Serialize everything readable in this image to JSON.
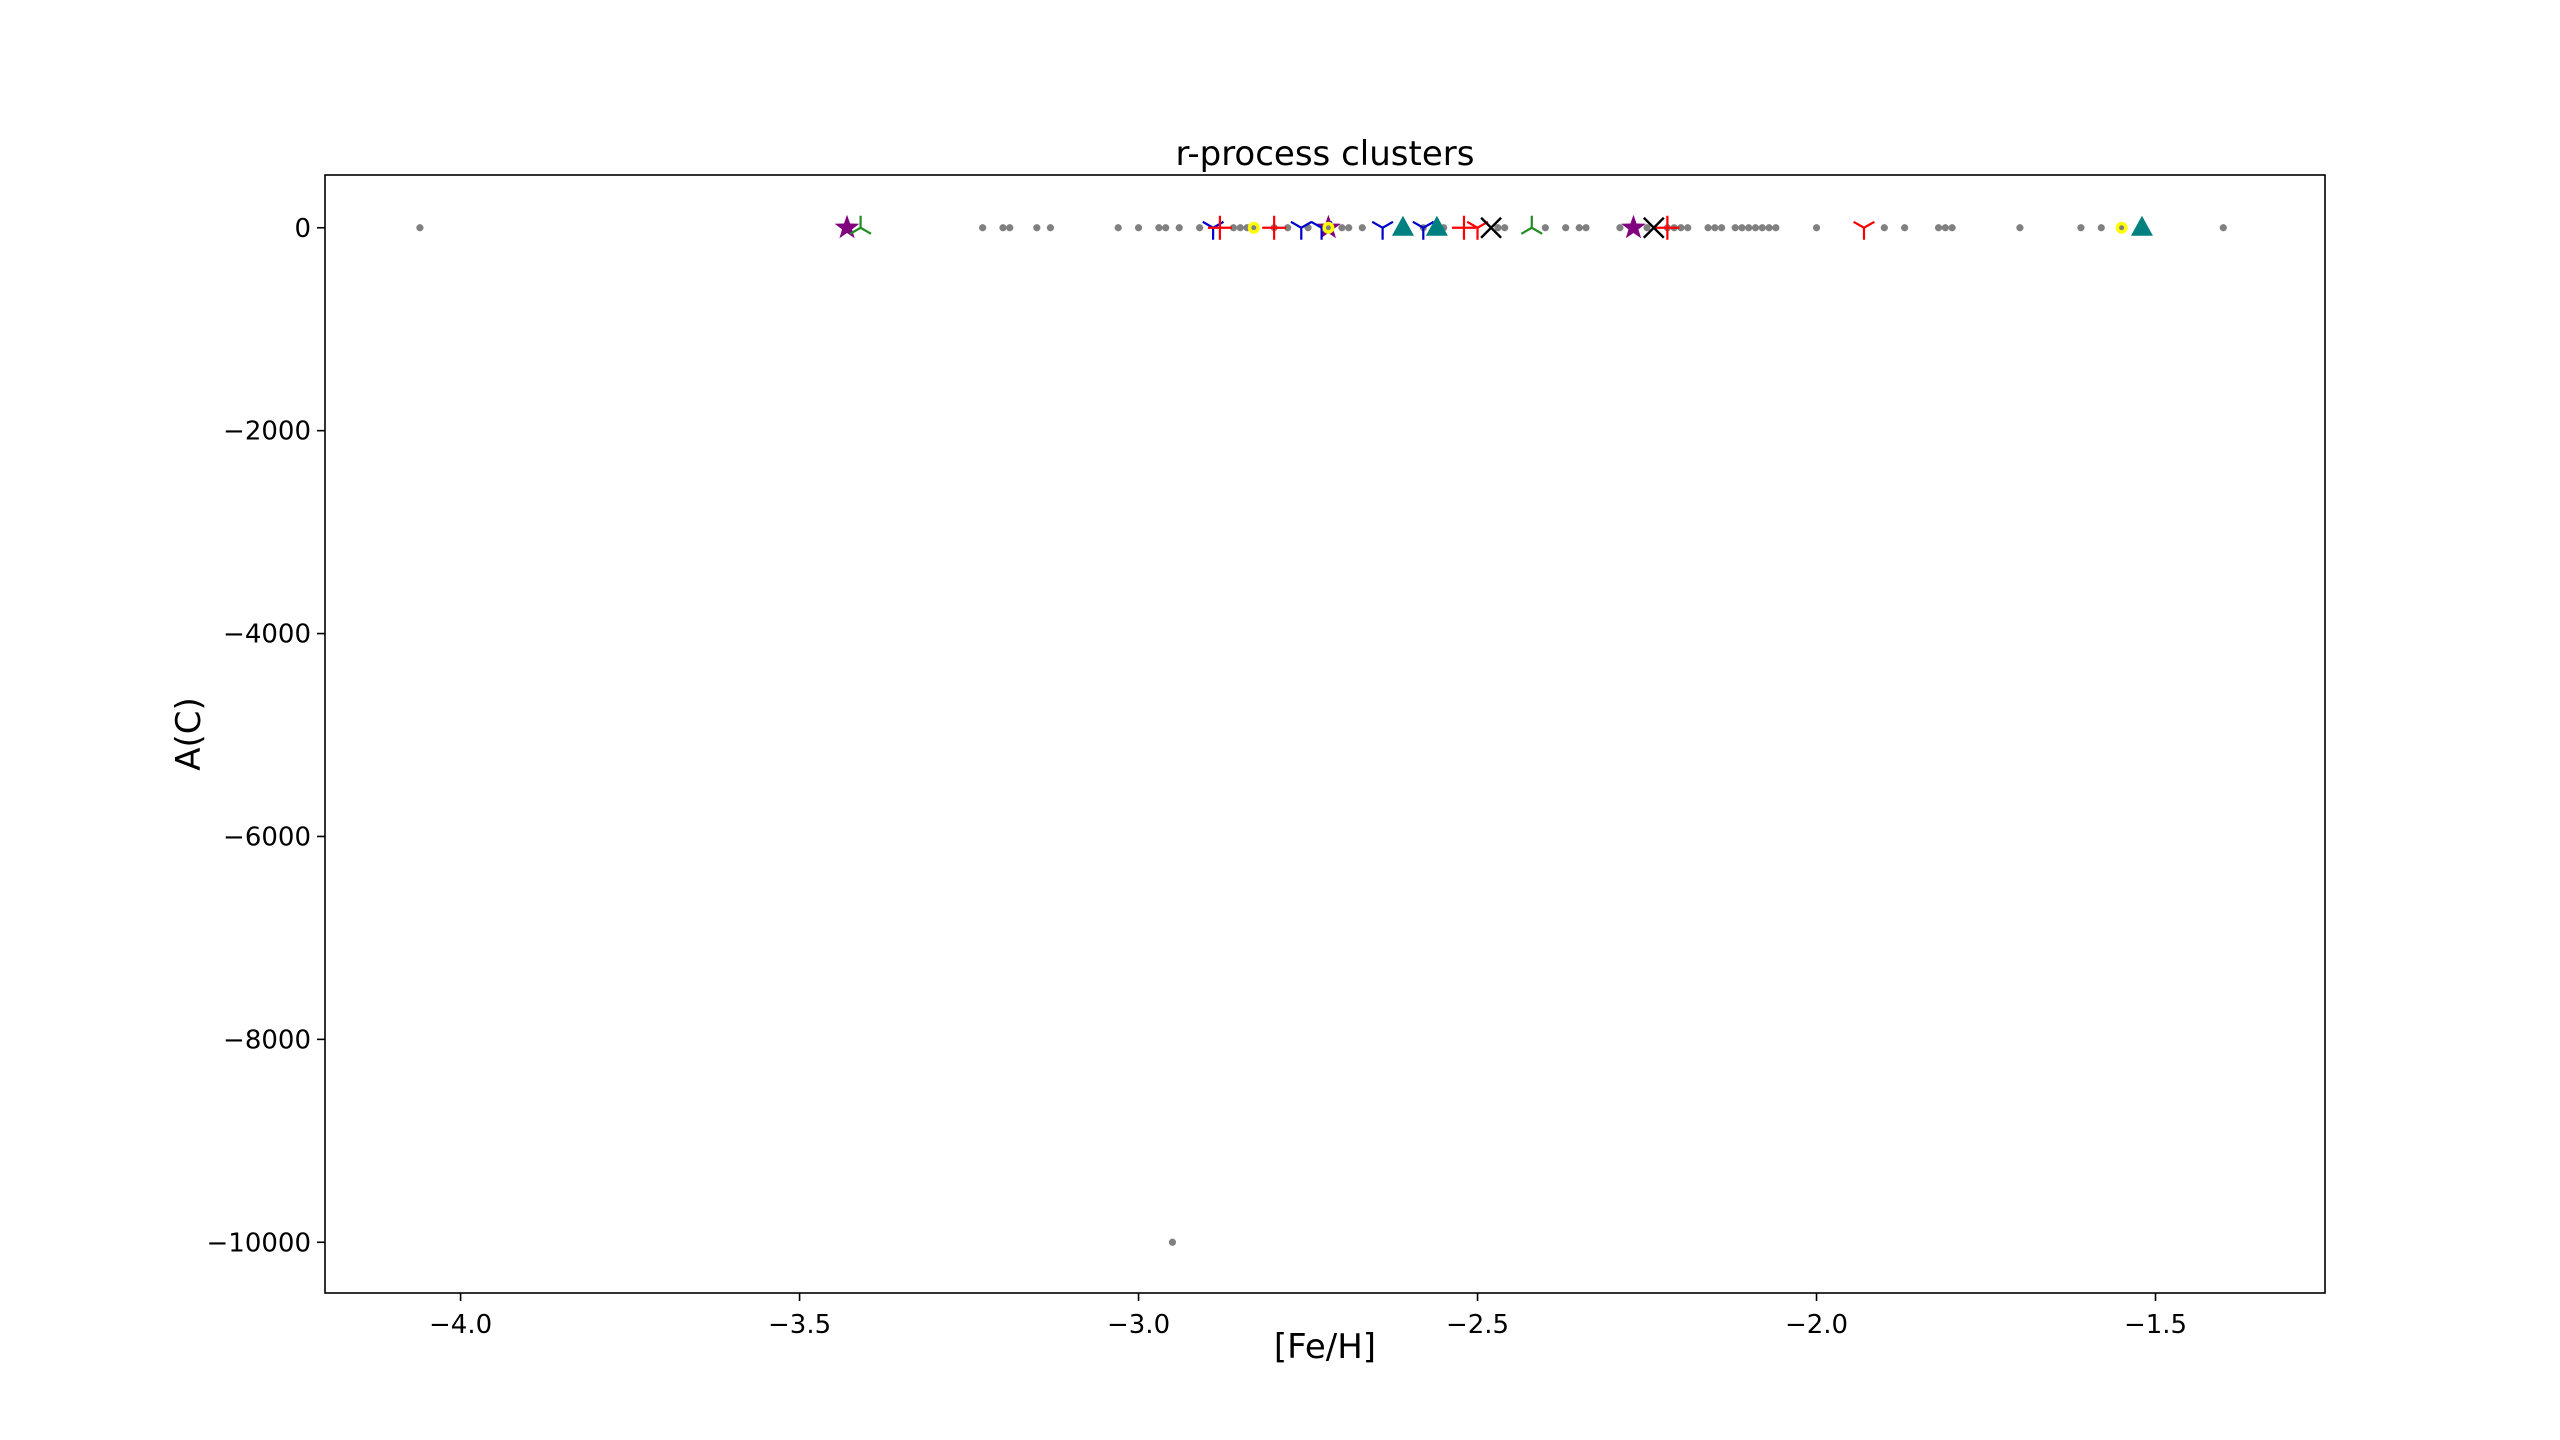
{
  "chart_data": {
    "type": "scatter",
    "title": "r-process clusters",
    "xlabel": "[Fe/H]",
    "ylabel": "A(C)",
    "xlim": [
      -4.2,
      -1.25
    ],
    "ylim": [
      -10500,
      520
    ],
    "x_ticks": [
      -4.0,
      -3.5,
      -3.0,
      -2.5,
      -2.0,
      -1.5
    ],
    "x_tick_labels": [
      "−4.0",
      "−3.5",
      "−3.0",
      "−2.5",
      "−2.0",
      "−1.5"
    ],
    "y_ticks": [
      0,
      -2000,
      -4000,
      -6000,
      -8000,
      -10000
    ],
    "y_tick_labels": [
      "0",
      "−2000",
      "−4000",
      "−6000",
      "−8000",
      "−10000"
    ],
    "grid": false,
    "legend": "none",
    "background_points": {
      "color": "#808080",
      "marker": "dot",
      "points": [
        [
          -4.06,
          0
        ],
        [
          -3.23,
          0
        ],
        [
          -3.2,
          0
        ],
        [
          -3.19,
          0
        ],
        [
          -3.15,
          0
        ],
        [
          -3.13,
          0
        ],
        [
          -3.03,
          0
        ],
        [
          -3.0,
          0
        ],
        [
          -2.97,
          0
        ],
        [
          -2.96,
          0
        ],
        [
          -2.94,
          0
        ],
        [
          -2.91,
          0
        ],
        [
          -2.86,
          0
        ],
        [
          -2.85,
          0
        ],
        [
          -2.84,
          0
        ],
        [
          -2.8,
          0
        ],
        [
          -2.78,
          0
        ],
        [
          -2.75,
          0
        ],
        [
          -2.7,
          0
        ],
        [
          -2.69,
          0
        ],
        [
          -2.67,
          0
        ],
        [
          -2.58,
          0
        ],
        [
          -2.55,
          0
        ],
        [
          -2.47,
          0
        ],
        [
          -2.46,
          0
        ],
        [
          -2.4,
          0
        ],
        [
          -2.37,
          0
        ],
        [
          -2.35,
          0
        ],
        [
          -2.34,
          0
        ],
        [
          -2.29,
          0
        ],
        [
          -2.25,
          0
        ],
        [
          -2.22,
          0
        ],
        [
          -2.21,
          0
        ],
        [
          -2.2,
          0
        ],
        [
          -2.19,
          0
        ],
        [
          -2.16,
          0
        ],
        [
          -2.15,
          0
        ],
        [
          -2.14,
          0
        ],
        [
          -2.12,
          0
        ],
        [
          -2.11,
          0
        ],
        [
          -2.1,
          0
        ],
        [
          -2.09,
          0
        ],
        [
          -2.08,
          0
        ],
        [
          -2.07,
          0
        ],
        [
          -2.06,
          0
        ],
        [
          -2.0,
          0
        ],
        [
          -1.9,
          0
        ],
        [
          -1.87,
          0
        ],
        [
          -1.82,
          0
        ],
        [
          -1.81,
          0
        ],
        [
          -1.8,
          0
        ],
        [
          -1.7,
          0
        ],
        [
          -1.61,
          0
        ],
        [
          -1.58,
          0
        ],
        [
          -1.4,
          0
        ],
        [
          -2.95,
          -10000
        ]
      ]
    },
    "series": [
      {
        "marker": "star",
        "color": "#800080",
        "points": [
          [
            -3.43,
            0
          ],
          [
            -2.27,
            0
          ],
          [
            -2.72,
            0
          ]
        ]
      },
      {
        "marker": "tri_left",
        "color": "#228b22",
        "points": [
          [
            -3.41,
            0
          ],
          [
            -2.42,
            0
          ]
        ]
      },
      {
        "marker": "tri_down",
        "color": "#0000cd",
        "points": [
          [
            -2.89,
            0
          ],
          [
            -2.76,
            0
          ],
          [
            -2.73,
            0
          ],
          [
            -2.64,
            0
          ],
          [
            -2.58,
            0
          ]
        ]
      },
      {
        "marker": "plus",
        "color": "#ff0000",
        "points": [
          [
            -2.88,
            0
          ],
          [
            -2.8,
            0
          ],
          [
            -2.52,
            0
          ],
          [
            -2.22,
            0
          ]
        ]
      },
      {
        "marker": "tri_down",
        "color": "#ff0000",
        "points": [
          [
            -1.93,
            0
          ],
          [
            -2.5,
            0
          ]
        ]
      },
      {
        "marker": "circle",
        "color": "#ffff00",
        "points": [
          [
            -2.83,
            0
          ],
          [
            -2.72,
            0
          ],
          [
            -1.55,
            0
          ]
        ]
      },
      {
        "marker": "triangle_up",
        "color": "#008080",
        "points": [
          [
            -2.61,
            0
          ],
          [
            -2.56,
            0
          ],
          [
            -1.52,
            0
          ]
        ]
      },
      {
        "marker": "x",
        "color": "#000000",
        "points": [
          [
            -2.48,
            0
          ],
          [
            -2.24,
            0
          ]
        ]
      }
    ]
  }
}
